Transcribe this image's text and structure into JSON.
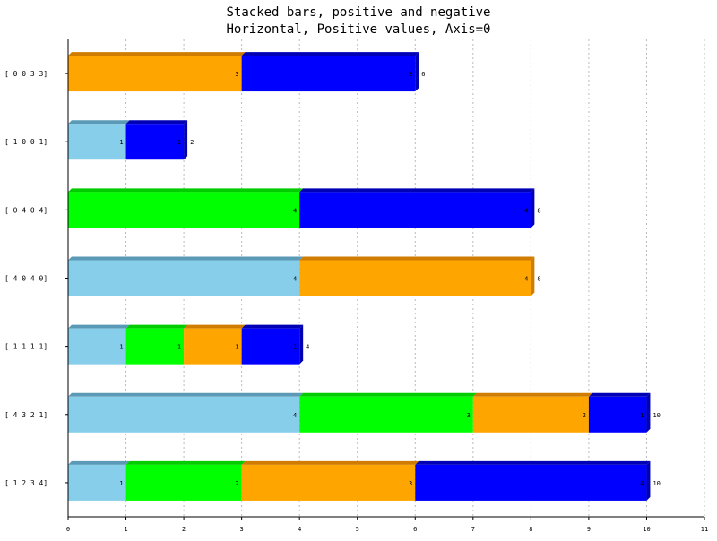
{
  "chart_data": {
    "type": "bar",
    "orientation": "horizontal",
    "stacked": true,
    "title": "Stacked bars, positive and negative",
    "subtitle": "Horizontal, Positive values, Axis=0",
    "categories": [
      "[ 1  2  3  4]",
      "[ 4  3  2  1]",
      "[ 1  1  1  1]",
      "[ 4  0  4  0]",
      "[ 0  4  0  4]",
      "[ 1  0  0  1]",
      "[ 0  0  3  3]"
    ],
    "series": [
      {
        "values": [
          1,
          4,
          1,
          4,
          0,
          1,
          0
        ],
        "color": "#87CEEB",
        "top_color": "#5A9AB6"
      },
      {
        "values": [
          2,
          3,
          1,
          0,
          4,
          0,
          0
        ],
        "color": "#00FF00",
        "top_color": "#00CC00"
      },
      {
        "values": [
          3,
          2,
          1,
          4,
          0,
          0,
          3
        ],
        "color": "#FFA500",
        "top_color": "#D07C00"
      },
      {
        "values": [
          4,
          1,
          1,
          0,
          4,
          1,
          3
        ],
        "color": "#0000FF",
        "top_color": "#0000B4"
      }
    ],
    "totals": [
      10,
      10,
      4,
      8,
      8,
      2,
      6
    ],
    "xlim": [
      0,
      11
    ],
    "x_ticks": [
      0,
      1,
      2,
      3,
      4,
      5,
      6,
      7,
      8,
      9,
      10,
      11
    ],
    "grid": true,
    "xlabel": "",
    "ylabel": ""
  }
}
